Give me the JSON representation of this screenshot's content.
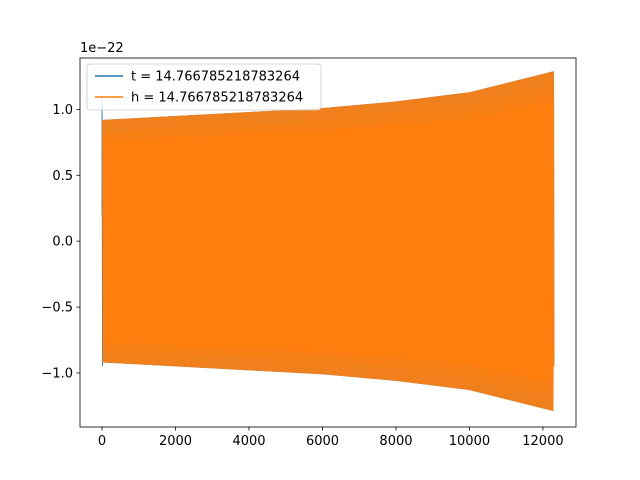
{
  "chart_data": {
    "type": "line",
    "offset_text": "1e−22",
    "xlim": [
      -600,
      12900
    ],
    "ylim": [
      -1.41,
      1.39
    ],
    "x_ticks": [
      {
        "value": 0,
        "label": "0"
      },
      {
        "value": 2000,
        "label": "2000"
      },
      {
        "value": 4000,
        "label": "4000"
      },
      {
        "value": 6000,
        "label": "6000"
      },
      {
        "value": 8000,
        "label": "8000"
      },
      {
        "value": 10000,
        "label": "10000"
      },
      {
        "value": 12000,
        "label": "12000"
      }
    ],
    "y_ticks": [
      {
        "value": -1.0,
        "label": "−1.0"
      },
      {
        "value": -0.5,
        "label": "−0.5"
      },
      {
        "value": 0.0,
        "label": "0.0"
      },
      {
        "value": 0.5,
        "label": "0.5"
      },
      {
        "value": 1.0,
        "label": "1.0"
      }
    ],
    "legend_position": "top-left",
    "series": [
      {
        "name": "t = 14.766785218783264",
        "color": "#1f77b4",
        "x_range": [
          0,
          12300
        ],
        "envelope": {
          "x": [
            0,
            2000,
            4000,
            6000,
            8000,
            10000,
            12300
          ],
          "amplitude": [
            0.92,
            0.95,
            0.98,
            1.01,
            1.06,
            1.13,
            1.29
          ]
        },
        "initial_spike": {
          "x": 0,
          "max": 1.1,
          "min": -0.95
        }
      },
      {
        "name": "h = 14.766785218783264",
        "color": "#ff7f0e",
        "x_range": [
          0,
          12300
        ],
        "envelope": {
          "x": [
            0,
            2000,
            4000,
            6000,
            8000,
            10000,
            12300
          ],
          "amplitude": [
            0.92,
            0.95,
            0.98,
            1.01,
            1.06,
            1.13,
            1.29
          ]
        }
      }
    ]
  }
}
